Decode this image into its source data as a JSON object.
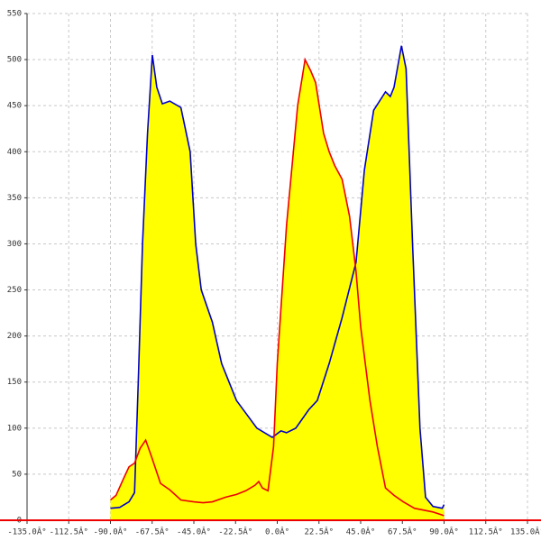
{
  "chart_data": {
    "type": "area-line",
    "xlim": [
      -135,
      135
    ],
    "ylim": [
      0,
      550
    ],
    "xticks": [
      {
        "value": -135,
        "label": "-135.0Â°"
      },
      {
        "value": -112.5,
        "label": "-112.5Â°"
      },
      {
        "value": -90,
        "label": "-90.0Â°"
      },
      {
        "value": -67.5,
        "label": "-67.5Â°"
      },
      {
        "value": -45,
        "label": "-45.0Â°"
      },
      {
        "value": -22.5,
        "label": "-22.5Â°"
      },
      {
        "value": 0,
        "label": "0.0Â°"
      },
      {
        "value": 22.5,
        "label": "22.5Â°"
      },
      {
        "value": 45,
        "label": "45.0Â°"
      },
      {
        "value": 67.5,
        "label": "67.5Â°"
      },
      {
        "value": 90,
        "label": "90.0Â°"
      },
      {
        "value": 112.5,
        "label": "112.5Â°"
      },
      {
        "value": 135,
        "label": "135.0Â°"
      }
    ],
    "yticks": [
      0,
      50,
      100,
      150,
      200,
      250,
      300,
      350,
      400,
      450,
      500,
      550
    ],
    "grid": true,
    "fill_color": "#ffff00",
    "series": [
      {
        "color": "#0000cc",
        "x": [
          -90,
          -85,
          -80,
          -77,
          -75,
          -72.7,
          -70,
          -67.4,
          -65,
          -62,
          -58,
          -52,
          -47,
          -44,
          -41,
          -35,
          -30,
          -22,
          -11,
          -2.7,
          2,
          5,
          10,
          17,
          21.6,
          28,
          35,
          42.5,
          47,
          52,
          58.4,
          61,
          63,
          67,
          69.5,
          73,
          77,
          80,
          84,
          89,
          90
        ],
        "values": [
          13,
          14,
          20,
          30,
          150,
          300,
          420,
          505,
          470,
          452,
          455,
          448,
          400,
          300,
          250,
          215,
          170,
          130,
          100,
          90,
          97,
          95,
          100,
          120,
          130,
          170,
          220,
          280,
          380,
          445,
          465,
          460,
          470,
          515,
          490,
          300,
          100,
          25,
          15,
          13,
          17
        ]
      },
      {
        "color": "#ee0000",
        "x": [
          -90,
          -87,
          -83,
          -80,
          -77,
          -74,
          -71,
          -68,
          -63,
          -58,
          -52,
          -45,
          -40,
          -35,
          -28,
          -22,
          -17,
          -12,
          -10,
          -8,
          -5,
          -2,
          0,
          5,
          11,
          15,
          18,
          20.7,
          25,
          28,
          31,
          35,
          39,
          42.5,
          45,
          50,
          54,
          58.4,
          63,
          68,
          74,
          84,
          90
        ],
        "values": [
          22,
          27,
          45,
          58,
          62,
          78,
          87,
          70,
          40,
          33,
          22,
          20,
          19,
          20,
          25,
          28,
          32,
          38,
          42,
          35,
          32,
          80,
          170,
          320,
          450,
          500,
          488,
          475,
          420,
          400,
          385,
          370,
          330,
          270,
          210,
          130,
          80,
          35,
          27,
          20,
          13,
          9,
          5
        ]
      }
    ]
  }
}
